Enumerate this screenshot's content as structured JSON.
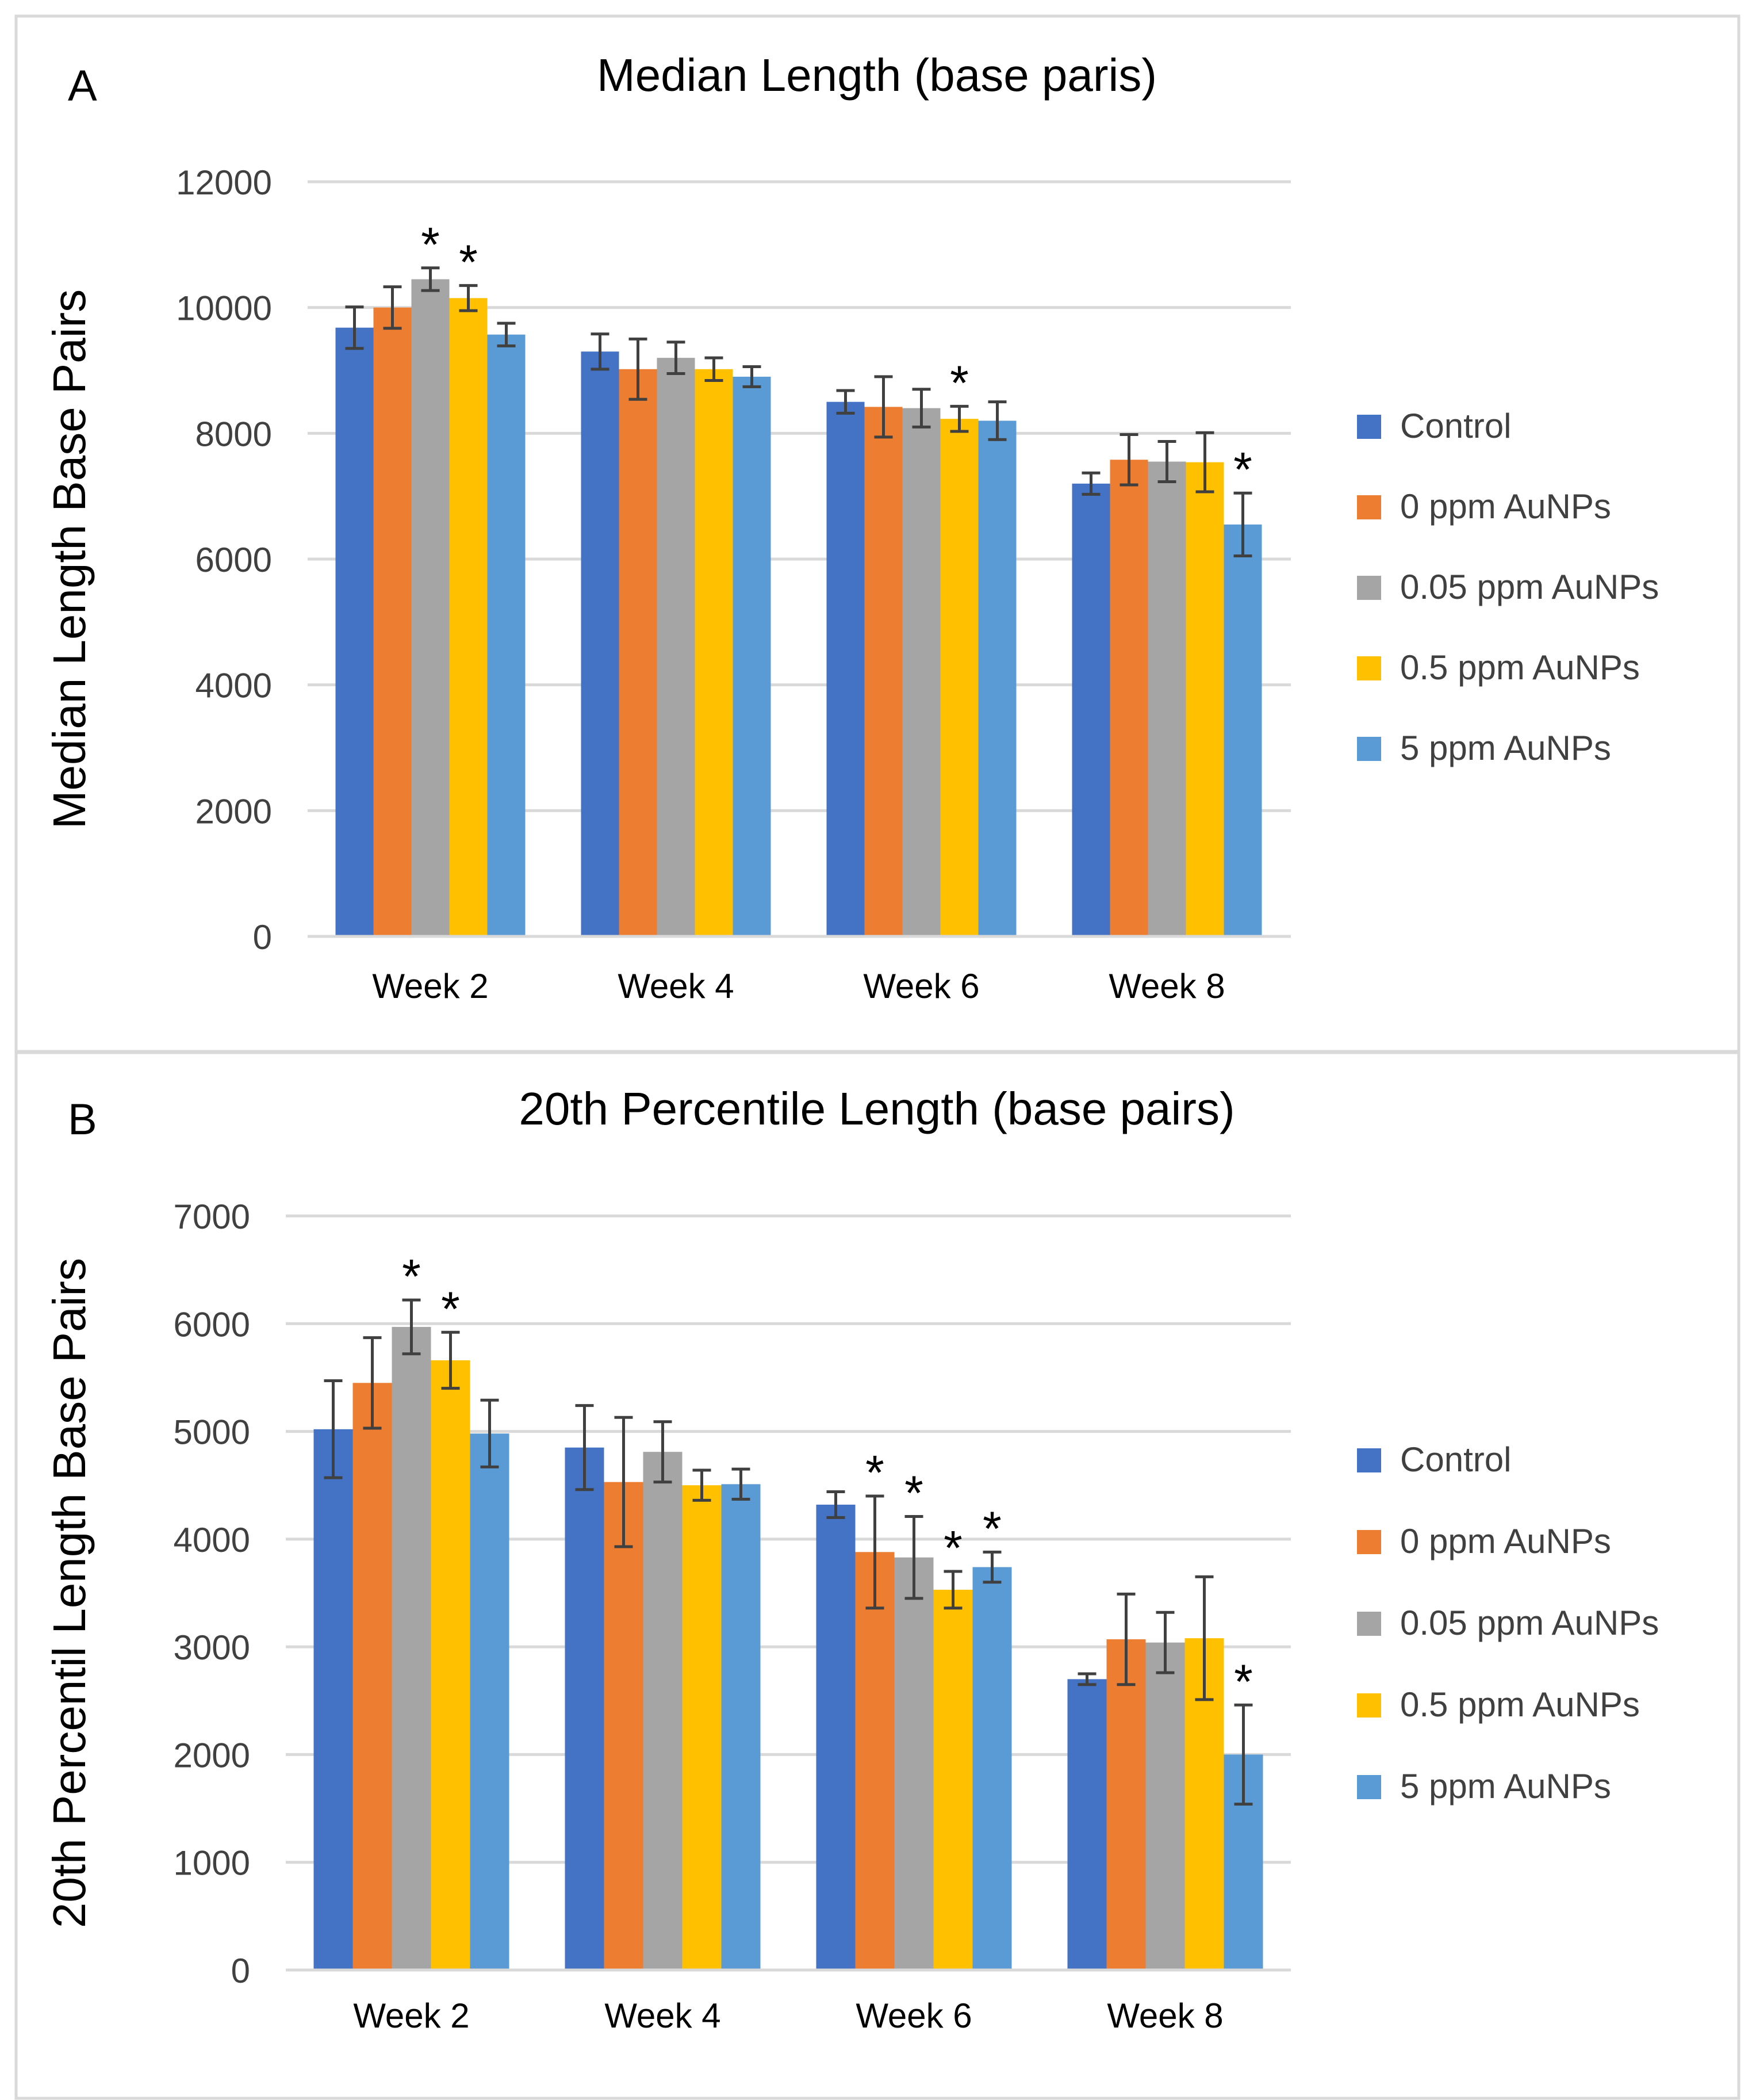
{
  "chart_data": [
    {
      "type": "bar",
      "panel_label": "A",
      "title": "Median Length (base paris)",
      "xlabel": "",
      "ylabel": "Median Length Base Pairs",
      "ylim": [
        0,
        12000
      ],
      "yticks": [
        0,
        2000,
        4000,
        6000,
        8000,
        10000,
        12000
      ],
      "grid": true,
      "legend_position": "right",
      "categories": [
        "Week 2",
        "Week 4",
        "Week 6",
        "Week 8"
      ],
      "series": [
        {
          "name": "Control",
          "color": "#4472C4",
          "values": [
            9680,
            9300,
            8500,
            7200
          ],
          "errors": [
            330,
            280,
            180,
            170
          ],
          "significant": [
            false,
            false,
            false,
            false
          ]
        },
        {
          "name": "0 ppm AuNPs",
          "color": "#ED7D31",
          "values": [
            10000,
            9020,
            8420,
            7580
          ],
          "errors": [
            330,
            480,
            480,
            400
          ],
          "significant": [
            false,
            false,
            false,
            false
          ]
        },
        {
          "name": "0.05 ppm AuNPs",
          "color": "#A5A5A5",
          "values": [
            10450,
            9200,
            8400,
            7550
          ],
          "errors": [
            180,
            250,
            300,
            320
          ],
          "significant": [
            true,
            false,
            false,
            false
          ]
        },
        {
          "name": "0.5 ppm AuNPs",
          "color": "#FFC000",
          "values": [
            10150,
            9020,
            8230,
            7540
          ],
          "errors": [
            200,
            180,
            200,
            470
          ],
          "significant": [
            true,
            false,
            true,
            false
          ]
        },
        {
          "name": "5 ppm AuNPs",
          "color": "#5B9BD5",
          "values": [
            9570,
            8900,
            8200,
            6550
          ],
          "errors": [
            180,
            160,
            300,
            500
          ],
          "significant": [
            false,
            false,
            false,
            true
          ]
        }
      ]
    },
    {
      "type": "bar",
      "panel_label": "B",
      "title": "20th Percentile Length (base pairs)",
      "xlabel": "",
      "ylabel": "20th Percentil Length Base Pairs",
      "ylim": [
        0,
        7000
      ],
      "yticks": [
        0,
        1000,
        2000,
        3000,
        4000,
        5000,
        6000,
        7000
      ],
      "grid": true,
      "legend_position": "right",
      "categories": [
        "Week 2",
        "Week 4",
        "Week 6",
        "Week 8"
      ],
      "series": [
        {
          "name": "Control",
          "color": "#4472C4",
          "values": [
            5020,
            4850,
            4320,
            2700
          ],
          "errors": [
            450,
            390,
            120,
            50
          ],
          "significant": [
            false,
            false,
            false,
            false
          ]
        },
        {
          "name": "0 ppm AuNPs",
          "color": "#ED7D31",
          "values": [
            5450,
            4530,
            3880,
            3070
          ],
          "errors": [
            420,
            600,
            520,
            420
          ],
          "significant": [
            false,
            false,
            true,
            false
          ]
        },
        {
          "name": "0.05 ppm AuNPs",
          "color": "#A5A5A5",
          "values": [
            5970,
            4810,
            3830,
            3040
          ],
          "errors": [
            250,
            280,
            380,
            280
          ],
          "significant": [
            true,
            false,
            true,
            false
          ]
        },
        {
          "name": "0.5 ppm AuNPs",
          "color": "#FFC000",
          "values": [
            5660,
            4500,
            3530,
            3080
          ],
          "errors": [
            260,
            140,
            170,
            570
          ],
          "significant": [
            true,
            false,
            true,
            false
          ]
        },
        {
          "name": "5 ppm AuNPs",
          "color": "#5B9BD5",
          "values": [
            4980,
            4510,
            3740,
            2000
          ],
          "errors": [
            310,
            140,
            140,
            460
          ],
          "significant": [
            false,
            false,
            true,
            true
          ]
        }
      ]
    }
  ]
}
